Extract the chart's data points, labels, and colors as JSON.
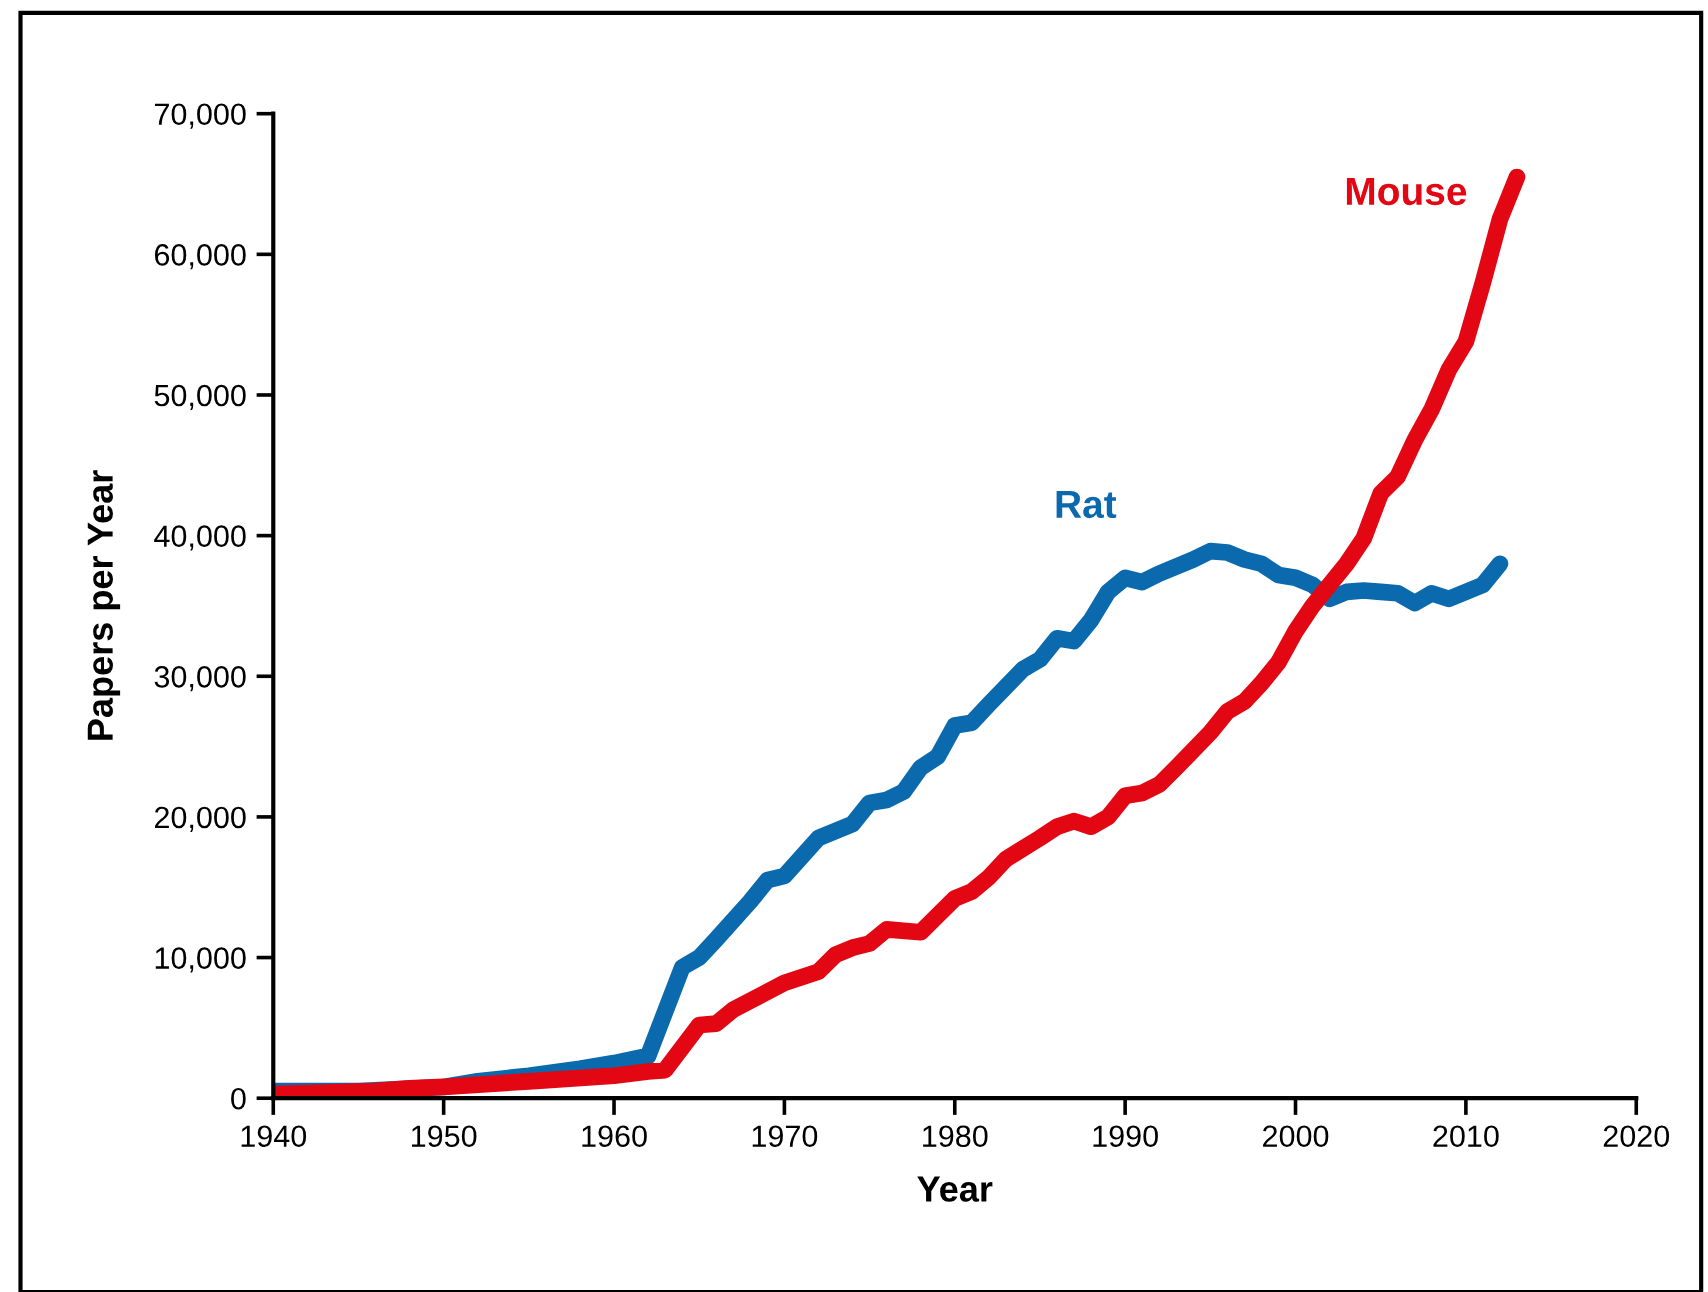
{
  "chart_data": {
    "type": "line",
    "xlabel": "Year",
    "ylabel": "Papers per Year",
    "xlim": [
      1940,
      2020
    ],
    "xticks": [
      1940,
      1950,
      1960,
      1970,
      1980,
      1990,
      2000,
      2010,
      2020
    ],
    "ylim": [
      0,
      70000
    ],
    "yticks": [
      {
        "value": 0,
        "label": "0"
      },
      {
        "value": 10000,
        "label": "10,000"
      },
      {
        "value": 20000,
        "label": "20,000"
      },
      {
        "value": 30000,
        "label": "30,000"
      },
      {
        "value": 40000,
        "label": "40,000"
      },
      {
        "value": 50000,
        "label": "50,000"
      },
      {
        "value": 60000,
        "label": "60,000"
      },
      {
        "value": 70000,
        "label": "70,000"
      }
    ],
    "grid": false,
    "legend": false,
    "marker": "none",
    "line_style": "solid",
    "series": [
      {
        "name": "Rat",
        "color": "#0a6aad",
        "x": [
          1940,
          1945,
          1950,
          1952,
          1955,
          1958,
          1960,
          1962,
          1964,
          1965,
          1966,
          1968,
          1969,
          1970,
          1972,
          1974,
          1975,
          1976,
          1977,
          1978,
          1979,
          1980,
          1981,
          1982,
          1984,
          1985,
          1986,
          1987,
          1988,
          1989,
          1990,
          1991,
          1992,
          1994,
          1995,
          1996,
          1997,
          1998,
          1999,
          2000,
          2001,
          2002,
          2003,
          2004,
          2005,
          2006,
          2007,
          2008,
          2009,
          2010,
          2011,
          2012
        ],
        "values": [
          500,
          500,
          800,
          1200,
          1600,
          2100,
          2500,
          3000,
          9300,
          10000,
          11300,
          14000,
          15500,
          15800,
          18500,
          19500,
          21000,
          21200,
          21800,
          23500,
          24300,
          26500,
          26700,
          28000,
          30500,
          31200,
          32700,
          32500,
          34000,
          36000,
          37000,
          36700,
          37300,
          38300,
          38900,
          38800,
          38300,
          38000,
          37200,
          37000,
          36500,
          35500,
          36000,
          36100,
          36000,
          35900,
          35200,
          35900,
          35500,
          36000,
          36500,
          38000
        ]
      },
      {
        "name": "Mouse",
        "color": "#e30613",
        "x": [
          1940,
          1946,
          1948,
          1950,
          1955,
          1960,
          1962,
          1963,
          1965,
          1966,
          1967,
          1970,
          1972,
          1973,
          1974,
          1975,
          1976,
          1978,
          1980,
          1981,
          1982,
          1983,
          1985,
          1986,
          1987,
          1988,
          1989,
          1990,
          1991,
          1992,
          1993,
          1995,
          1996,
          1997,
          1998,
          1999,
          2000,
          2001,
          2002,
          2003,
          2004,
          2005,
          2006,
          2007,
          2008,
          2009,
          2010,
          2011,
          2012,
          2013
        ],
        "values": [
          300,
          500,
          700,
          800,
          1200,
          1600,
          1900,
          2000,
          5200,
          5300,
          6300,
          8200,
          9000,
          10200,
          10700,
          11000,
          12000,
          11800,
          14200,
          14700,
          15700,
          17000,
          18500,
          19300,
          19700,
          19300,
          20000,
          21500,
          21700,
          22300,
          23500,
          26000,
          27500,
          28200,
          29500,
          31000,
          33200,
          35000,
          36500,
          38000,
          39800,
          43000,
          44200,
          46800,
          49000,
          51800,
          53800,
          58000,
          62500,
          65500
        ]
      }
    ]
  }
}
